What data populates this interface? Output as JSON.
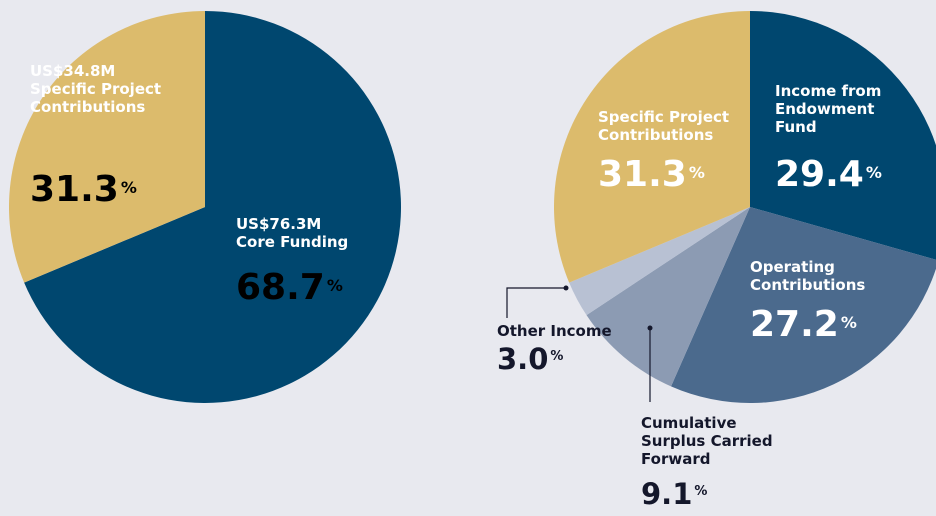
{
  "chart_data": [
    {
      "type": "pie",
      "categories": [
        "Core Funding",
        "Specific Project Contributions"
      ],
      "amounts": [
        "US$76.3M",
        "US$34.8M"
      ],
      "values": [
        68.7,
        31.3
      ],
      "unit": "%",
      "colors": [
        "#00476f",
        "#dcbb6c"
      ]
    },
    {
      "type": "pie",
      "categories": [
        "Income from Endowment Fund",
        "Operating Contributions",
        "Cumulative Surplus Carried Forward",
        "Other Income",
        "Specific Project Contributions"
      ],
      "values": [
        29.4,
        27.2,
        9.1,
        3.0,
        31.3
      ],
      "value_labels": [
        "29.4",
        "27.2",
        "9.1",
        "3.0",
        "31.3"
      ],
      "unit": "%",
      "colors": [
        "#00476f",
        "#4b6a8d",
        "#8c9bb3",
        "#b8c1d3",
        "#dcbb6c"
      ]
    }
  ]
}
